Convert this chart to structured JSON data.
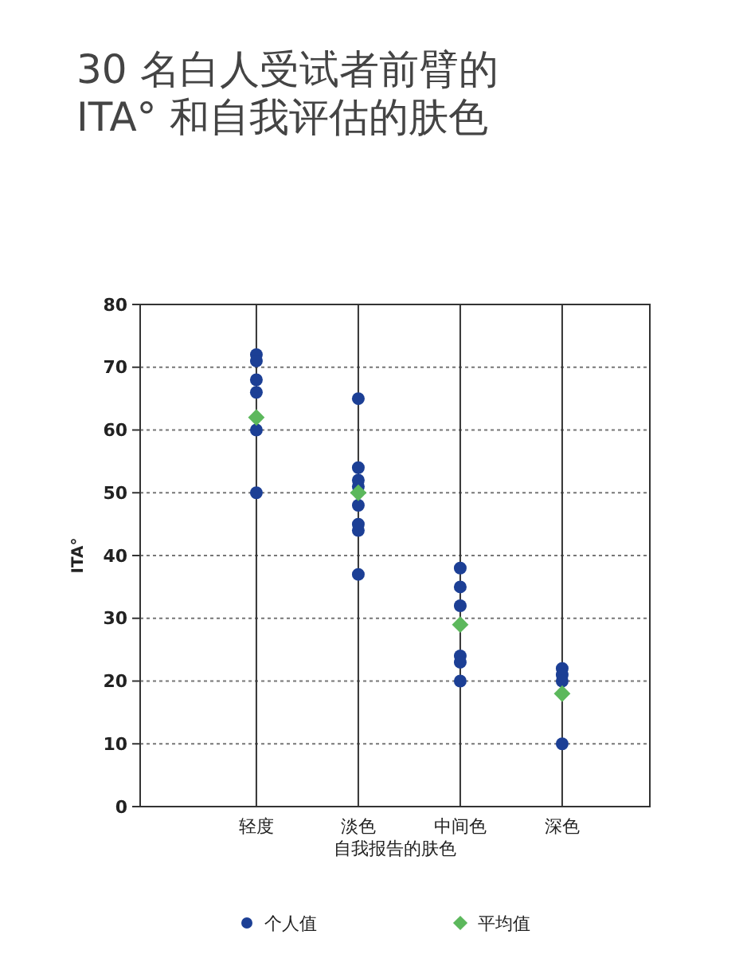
{
  "chart_data": {
    "type": "scatter",
    "title": "30 名白人受试者前臂的\nITA° 和自我评估的肤色",
    "xlabel": "自我报告的肤色",
    "ylabel": "ITA°",
    "categories": [
      "轻度",
      "淡色",
      "中间色",
      "深色"
    ],
    "series": [
      {
        "name": "个人值",
        "color": "#1c3f95",
        "marker": "circle",
        "x": [
          "轻度",
          "轻度",
          "轻度",
          "轻度",
          "轻度",
          "轻度",
          "淡色",
          "淡色",
          "淡色",
          "淡色",
          "淡色",
          "淡色",
          "淡色",
          "淡色",
          "中间色",
          "中间色",
          "中间色",
          "中间色",
          "中间色",
          "中间色",
          "深色",
          "深色",
          "深色",
          "深色"
        ],
        "values": [
          72,
          71,
          68,
          66,
          60,
          50,
          65,
          54,
          52,
          51,
          48,
          45,
          44,
          37,
          38,
          35,
          32,
          24,
          23,
          20,
          22,
          21,
          20,
          10
        ]
      },
      {
        "name": "平均值",
        "color": "#5cb85c",
        "marker": "diamond",
        "x": [
          "轻度",
          "淡色",
          "中间色",
          "深色"
        ],
        "values": [
          62,
          50,
          29,
          18
        ]
      }
    ],
    "ylim": [
      0,
      80
    ],
    "yticks": [
      0,
      10,
      20,
      30,
      40,
      50,
      60,
      70,
      80
    ],
    "grid": true,
    "legend": "bottom"
  }
}
